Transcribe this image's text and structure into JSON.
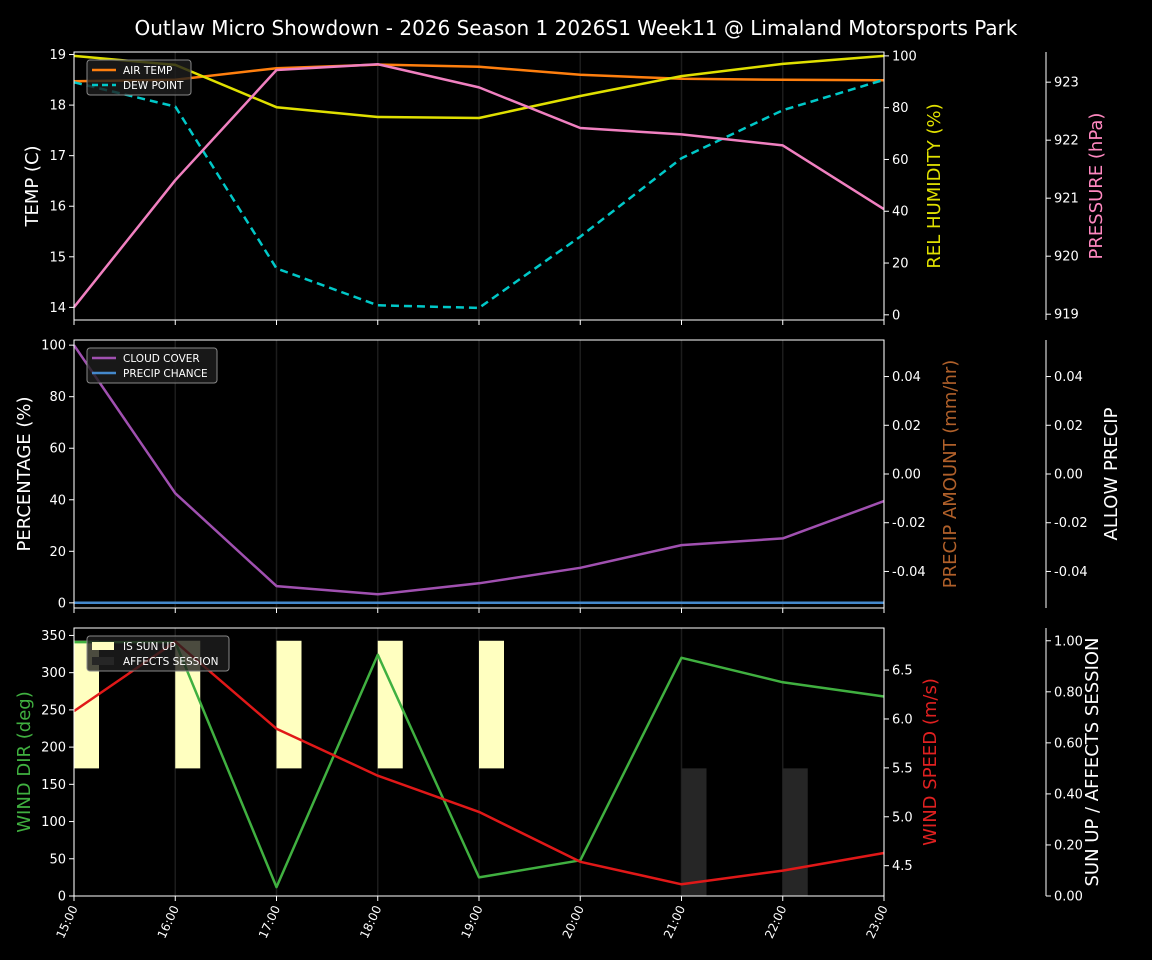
{
  "title": "Outlaw Micro Showdown - 2026 Season 1 2026S1 Week11 @ Limaland Motorsports Park",
  "chart_data": [
    {
      "type": "line",
      "x": [
        "15:00",
        "16:00",
        "17:00",
        "18:00",
        "19:00",
        "20:00",
        "21:00",
        "22:00",
        "23:00"
      ],
      "axes": {
        "left": {
          "label": "TEMP (C)",
          "ticks": [
            14,
            15,
            16,
            17,
            18,
            19
          ],
          "range": [
            13.75,
            19.05
          ],
          "color": "#ffffff"
        },
        "right": {
          "label": "REL HUMIDITY (%)",
          "ticks": [
            0,
            20,
            40,
            60,
            80,
            100
          ],
          "range": [
            -2,
            101.5
          ],
          "color": "#e0e000"
        },
        "right2": {
          "label": "PRESSURE (hPa)",
          "ticks": [
            919,
            920,
            921,
            922,
            923
          ],
          "range": [
            918.9,
            923.52
          ],
          "color": "#ff88c0"
        }
      },
      "legend": {
        "placement": "top-left",
        "entries": [
          "AIR TEMP",
          "DEW POINT"
        ]
      },
      "series": [
        {
          "name": "AIR TEMP",
          "axis": "left",
          "color": "#ff7f0e",
          "dash": false,
          "values": [
            18.47,
            18.5,
            18.73,
            18.8,
            18.76,
            18.6,
            18.52,
            18.5,
            18.49
          ]
        },
        {
          "name": "DEW POINT",
          "axis": "left",
          "color": "#00c8c8",
          "dash": true,
          "values": [
            18.45,
            17.97,
            14.77,
            14.04,
            13.99,
            15.4,
            16.95,
            17.9,
            18.5
          ]
        },
        {
          "axis": "right",
          "color": "#e0e000",
          "dash": false,
          "values": [
            100,
            96.5,
            80.2,
            76.4,
            76,
            84.5,
            92.2,
            96.9,
            100
          ]
        },
        {
          "axis": "right2",
          "color": "#f080c0",
          "dash": false,
          "values": [
            919.12,
            921.31,
            923.21,
            923.31,
            922.91,
            922.21,
            922.1,
            921.91,
            920.81
          ]
        }
      ]
    },
    {
      "type": "line",
      "x": [
        "15:00",
        "16:00",
        "17:00",
        "18:00",
        "19:00",
        "20:00",
        "21:00",
        "22:00",
        "23:00"
      ],
      "axes": {
        "left": {
          "label": "PERCENTAGE (%)",
          "ticks": [
            0,
            20,
            40,
            60,
            80,
            100
          ],
          "range": [
            -2,
            102
          ],
          "color": "#ffffff"
        },
        "right": {
          "label": "PRECIP AMOUNT (mm/hr)",
          "ticks": [
            -0.04,
            -0.02,
            0.0,
            0.02,
            0.04
          ],
          "range": [
            -0.055,
            0.055
          ],
          "color": "#b0602a"
        },
        "right2": {
          "label": "ALLOW PRECIP",
          "ticks": [
            -0.04,
            -0.02,
            0.0,
            0.02,
            0.04
          ],
          "range": [
            -0.055,
            0.055
          ],
          "color": "#ffffff"
        }
      },
      "legend": {
        "placement": "top-left",
        "entries": [
          "CLOUD COVER",
          "PRECIP CHANCE"
        ]
      },
      "series": [
        {
          "name": "CLOUD COVER",
          "axis": "left",
          "color": "#a050b0",
          "dash": false,
          "values": [
            100,
            42.5,
            6.5,
            3.3,
            7.6,
            13.6,
            22.4,
            25,
            39.5
          ]
        },
        {
          "name": "PRECIP CHANCE",
          "axis": "left",
          "color": "#4488cc",
          "dash": false,
          "values": [
            0,
            0,
            0,
            0,
            0,
            0,
            0,
            0,
            0
          ]
        }
      ]
    },
    {
      "type": "line",
      "x": [
        "15:00",
        "16:00",
        "17:00",
        "18:00",
        "19:00",
        "20:00",
        "21:00",
        "22:00",
        "23:00"
      ],
      "axes": {
        "left": {
          "label": "WIND DIR (deg)",
          "ticks": [
            0,
            50,
            100,
            150,
            200,
            250,
            300,
            350
          ],
          "range": [
            0,
            360
          ],
          "color": "#40b040"
        },
        "right": {
          "label": "WIND SPEED (m/s)",
          "ticks": [
            4.5,
            5.0,
            5.5,
            6.0,
            6.5
          ],
          "range": [
            4.19,
            6.93
          ],
          "color": "#e02020"
        },
        "right2": {
          "label": "SUN UP / AFFECTS SESSION",
          "ticks": [
            0.0,
            0.2,
            0.4,
            0.6,
            0.8,
            1.0
          ],
          "range": [
            0,
            1.05
          ],
          "color": "#ffffff"
        }
      },
      "legend": {
        "placement": "top-left",
        "entries": [
          "IS SUN UP",
          "AFFECTS SESSION"
        ]
      },
      "bars": [
        {
          "name": "IS SUN UP",
          "color": "#ffffc0",
          "values": [
            1,
            1,
            1,
            1,
            1,
            0,
            0,
            0,
            0
          ]
        },
        {
          "name": "AFFECTS SESSION",
          "color": "#262626",
          "values": [
            0,
            0,
            0,
            0,
            0,
            0,
            1,
            1,
            0
          ]
        }
      ],
      "series": [
        {
          "axis": "left",
          "color": "#40b040",
          "dash": false,
          "values": [
            341,
            341,
            12,
            324,
            25,
            48,
            320,
            287,
            268
          ]
        },
        {
          "axis": "right",
          "color": "#e01818",
          "dash": false,
          "values": [
            6.08,
            6.79,
            5.9,
            5.42,
            5.05,
            4.54,
            4.31,
            4.45,
            4.63
          ]
        }
      ]
    }
  ]
}
